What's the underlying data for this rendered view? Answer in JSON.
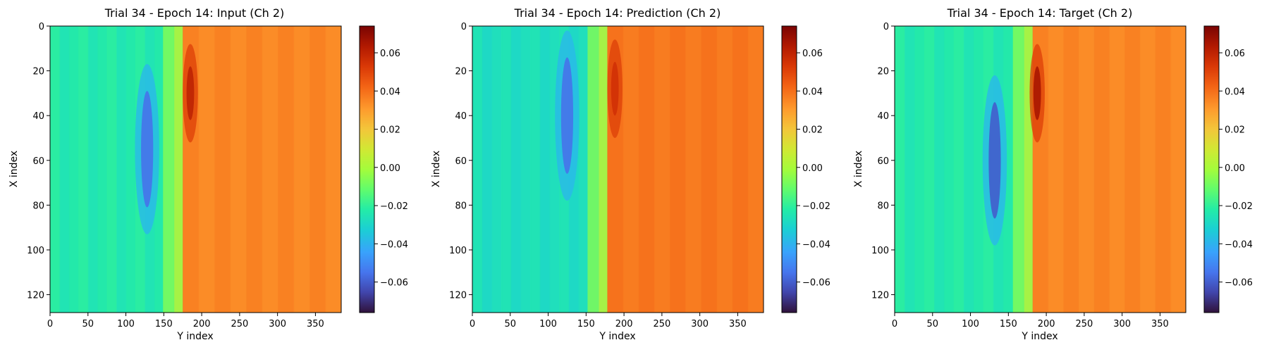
{
  "chart_data": [
    {
      "type": "heatmap",
      "title": "Trial 34 - Epoch 14: Input (Ch 2)",
      "xlabel": "Y index",
      "ylabel": "X index",
      "xlim": [
        0,
        384
      ],
      "ylim": [
        128,
        0
      ],
      "xticks": [
        "0",
        "50",
        "100",
        "150",
        "200",
        "250",
        "300",
        "350"
      ],
      "yticks": [
        "0",
        "20",
        "40",
        "60",
        "80",
        "100",
        "120"
      ],
      "colorbar": {
        "min": -0.076,
        "max": 0.074,
        "ticks": [
          "0.06",
          "0.04",
          "0.02",
          "0.00",
          "−0.02",
          "−0.04",
          "−0.06"
        ],
        "colormap": "turbo"
      },
      "field": {
        "boundary_y": 175,
        "left_value": -0.024,
        "right_value": 0.035,
        "low_center": [
          55,
          128
        ],
        "low_value": -0.055,
        "high_center": [
          30,
          185
        ],
        "high_value": 0.06
      }
    },
    {
      "type": "heatmap",
      "title": "Trial 34 - Epoch 14: Prediction (Ch 2)",
      "xlabel": "Y index",
      "ylabel": "X index",
      "xlim": [
        0,
        384
      ],
      "ylim": [
        128,
        0
      ],
      "xticks": [
        "0",
        "50",
        "100",
        "150",
        "200",
        "250",
        "300",
        "350"
      ],
      "yticks": [
        "0",
        "20",
        "40",
        "60",
        "80",
        "100",
        "120"
      ],
      "colorbar": {
        "min": -0.076,
        "max": 0.074,
        "ticks": [
          "0.06",
          "0.04",
          "0.02",
          "0.00",
          "−0.02",
          "−0.04",
          "−0.06"
        ],
        "colormap": "turbo"
      },
      "field": {
        "boundary_y": 178,
        "left_value": -0.028,
        "right_value": 0.038,
        "low_center": [
          40,
          125
        ],
        "low_value": -0.055,
        "high_center": [
          28,
          188
        ],
        "high_value": 0.055
      }
    },
    {
      "type": "heatmap",
      "title": "Trial 34 - Epoch 14: Target (Ch 2)",
      "xlabel": "Y index",
      "ylabel": "X index",
      "xlim": [
        0,
        384
      ],
      "ylim": [
        128,
        0
      ],
      "xticks": [
        "0",
        "50",
        "100",
        "150",
        "200",
        "250",
        "300",
        "350"
      ],
      "yticks": [
        "0",
        "20",
        "40",
        "60",
        "80",
        "100",
        "120"
      ],
      "colorbar": {
        "min": -0.076,
        "max": 0.074,
        "ticks": [
          "0.06",
          "0.04",
          "0.02",
          "0.00",
          "−0.02",
          "−0.04",
          "−0.06"
        ],
        "colormap": "turbo"
      },
      "field": {
        "boundary_y": 182,
        "left_value": -0.024,
        "right_value": 0.035,
        "low_center": [
          60,
          132
        ],
        "low_value": -0.06,
        "high_center": [
          30,
          188
        ],
        "high_value": 0.065
      }
    }
  ]
}
